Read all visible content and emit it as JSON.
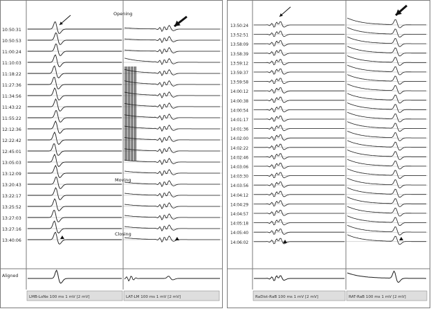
{
  "figure": {
    "left_timestamps": [
      "10:50:31",
      "10:50:53",
      "11:00:24",
      "11:10:03",
      "11:18:22",
      "11:27:36",
      "11:34:56",
      "11:43:22",
      "11:55:22",
      "12:12:36",
      "12:22:42",
      "12:45:01",
      "13:05:03",
      "13:12:09",
      "13:20:43",
      "13:22:17",
      "13:25:52",
      "13:27:03",
      "13:27:16",
      "13:40:06"
    ],
    "right_timestamps": [
      "13:50:24",
      "13:52:51",
      "13:58:09",
      "13:58:39",
      "13:59:12",
      "13:59:37",
      "13:59:58",
      "14:00:12",
      "14:00:38",
      "14:00:54",
      "14:01:17",
      "14:01:36",
      "14:02:00",
      "14:02:22",
      "14:02:46",
      "14:03:06",
      "14:03:30",
      "14:03:56",
      "14:04:12",
      "14:04:29",
      "14:04:57",
      "14:05:18",
      "14:05:40",
      "14:06:02"
    ],
    "averaged_label": "Aligned",
    "annotations": {
      "opening": "Opening",
      "moving": "Moving",
      "closing": "Closing"
    },
    "footer_labels": [
      "LMB-LoNe 100 ms 1 mV [2 mV]",
      "LAT-LM 100 ms 1 mV [2 mV]",
      "RaDist-RaB 100 ms 1 mV [2 mV]",
      "RAT-RaB 100 ms 1 mV [2 mV]"
    ],
    "colors": {
      "trace": "#1a1a1a",
      "gridline": "#7a7a7a",
      "arrow": "#111111",
      "footer": "#dedede"
    }
  }
}
